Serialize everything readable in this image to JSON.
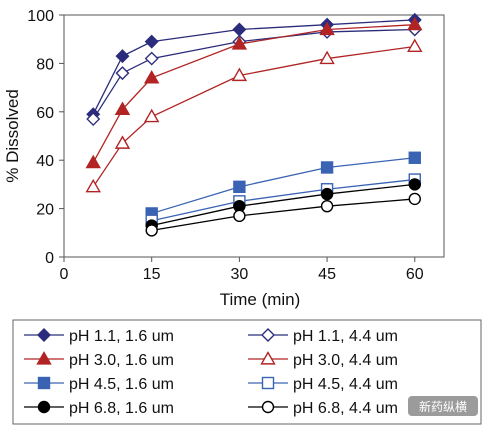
{
  "chart_data": {
    "type": "line",
    "title": "",
    "xlabel": "Time (min)",
    "ylabel": "% Dissolved",
    "xlim": [
      0,
      65
    ],
    "ylim": [
      0,
      100
    ],
    "xticks": [
      0,
      15,
      30,
      45,
      60
    ],
    "yticks": [
      0,
      20,
      40,
      60,
      80,
      100
    ],
    "grid": false,
    "legend_position": "bottom",
    "series": [
      {
        "name": "pH 1.1, 1.6 um",
        "color": "#2b2d7c",
        "marker": "diamond",
        "filled": true,
        "x": [
          5,
          10,
          15,
          30,
          45,
          60
        ],
        "y": [
          59,
          83,
          89,
          94,
          96,
          98
        ]
      },
      {
        "name": "pH 1.1, 4.4 um",
        "color": "#2b2d7c",
        "marker": "diamond",
        "filled": false,
        "x": [
          5,
          10,
          15,
          30,
          45,
          60
        ],
        "y": [
          57,
          76,
          82,
          89,
          93,
          94
        ]
      },
      {
        "name": "pH 3.0, 1.6 um",
        "color": "#b22424",
        "marker": "triangle",
        "filled": true,
        "x": [
          5,
          10,
          15,
          30,
          45,
          60
        ],
        "y": [
          39,
          61,
          74,
          88,
          94,
          96
        ]
      },
      {
        "name": "pH 3.0, 4.4 um",
        "color": "#b22424",
        "marker": "triangle",
        "filled": false,
        "x": [
          5,
          10,
          15,
          30,
          45,
          60
        ],
        "y": [
          29,
          47,
          58,
          75,
          82,
          87
        ]
      },
      {
        "name": "pH 4.5, 1.6 um",
        "color": "#3a63b3",
        "marker": "square",
        "filled": true,
        "x": [
          15,
          30,
          45,
          60
        ],
        "y": [
          18,
          29,
          37,
          41
        ]
      },
      {
        "name": "pH 4.5, 4.4 um",
        "color": "#3a63b3",
        "marker": "square",
        "filled": false,
        "x": [
          15,
          30,
          45,
          60
        ],
        "y": [
          15,
          23,
          28,
          32
        ]
      },
      {
        "name": "pH 6.8, 1.6 um",
        "color": "#000000",
        "marker": "circle",
        "filled": true,
        "x": [
          15,
          30,
          45,
          60
        ],
        "y": [
          13,
          21,
          26,
          30
        ]
      },
      {
        "name": "pH 6.8, 4.4 um",
        "color": "#000000",
        "marker": "circle",
        "filled": false,
        "x": [
          15,
          30,
          45,
          60
        ],
        "y": [
          11,
          17,
          21,
          24
        ]
      }
    ]
  },
  "legend": {
    "items": [
      "pH 1.1, 1.6 um",
      "pH 1.1, 4.4 um",
      "pH 3.0, 1.6 um",
      "pH 3.0, 4.4 um",
      "pH 4.5, 1.6 um",
      "pH 4.5, 4.4 um",
      "pH 6.8, 1.6 um",
      "pH 6.8, 4.4 um"
    ]
  },
  "watermark": {
    "text": "新药纵横",
    "color": "#8a8a8a"
  }
}
